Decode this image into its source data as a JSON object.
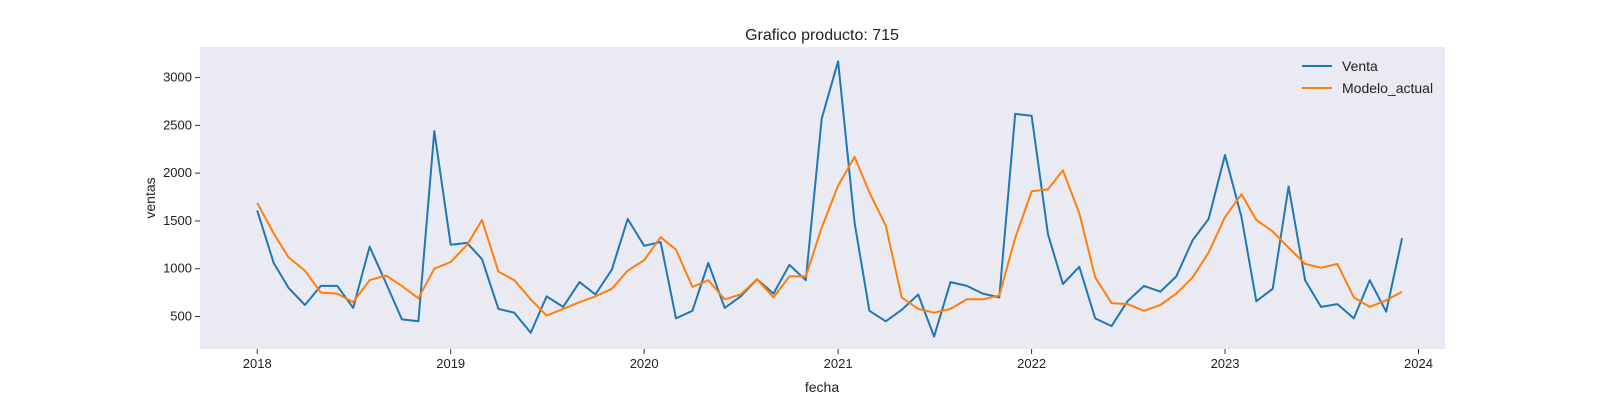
{
  "chart_data": {
    "type": "line",
    "title": "Grafico producto: 715",
    "xlabel": "fecha",
    "ylabel": "ventas",
    "grid": false,
    "legend_position": "top-right",
    "xlim": [
      "2017-09-15",
      "2024-02-20"
    ],
    "ylim": [
      160,
      3320
    ],
    "x_ticks": [
      {
        "value": "2018-01-01",
        "label": "2018"
      },
      {
        "value": "2019-01-01",
        "label": "2019"
      },
      {
        "value": "2020-01-01",
        "label": "2020"
      },
      {
        "value": "2021-01-01",
        "label": "2021"
      },
      {
        "value": "2022-01-01",
        "label": "2022"
      },
      {
        "value": "2023-01-01",
        "label": "2023"
      },
      {
        "value": "2024-01-01",
        "label": "2024"
      }
    ],
    "y_ticks": [
      500,
      1000,
      1500,
      2000,
      2500,
      3000
    ],
    "x_start": "2018-01",
    "x_frequency": "monthly",
    "series": [
      {
        "name": "Venta",
        "color": "#1f77b4",
        "values": [
          1610,
          1060,
          800,
          620,
          820,
          820,
          590,
          1230,
          850,
          470,
          450,
          2440,
          1250,
          1270,
          1100,
          580,
          540,
          330,
          710,
          600,
          860,
          730,
          990,
          1520,
          1240,
          1280,
          480,
          560,
          1060,
          590,
          710,
          890,
          740,
          1040,
          880,
          2570,
          3170,
          1480,
          560,
          450,
          570,
          730,
          290,
          860,
          820,
          740,
          700,
          2620,
          2600,
          1360,
          840,
          1020,
          480,
          400,
          660,
          820,
          760,
          920,
          1300,
          1520,
          2190,
          1540,
          660,
          790,
          1860,
          880,
          600,
          630,
          480,
          880,
          550,
          1320
        ]
      },
      {
        "name": "Modelo_actual",
        "color": "#ff7f0e",
        "values": [
          1690,
          1370,
          1120,
          980,
          750,
          740,
          650,
          880,
          930,
          820,
          690,
          1000,
          1070,
          1250,
          1510,
          970,
          880,
          680,
          510,
          580,
          650,
          710,
          790,
          980,
          1090,
          1330,
          1200,
          810,
          880,
          680,
          730,
          890,
          700,
          920,
          920,
          1430,
          1870,
          2170,
          1800,
          1450,
          700,
          580,
          540,
          580,
          680,
          680,
          720,
          1320,
          1810,
          1830,
          2030,
          1580,
          910,
          640,
          630,
          560,
          620,
          740,
          910,
          1170,
          1540,
          1780,
          1510,
          1390,
          1220,
          1050,
          1010,
          1050,
          700,
          600,
          670,
          760
        ]
      }
    ]
  }
}
